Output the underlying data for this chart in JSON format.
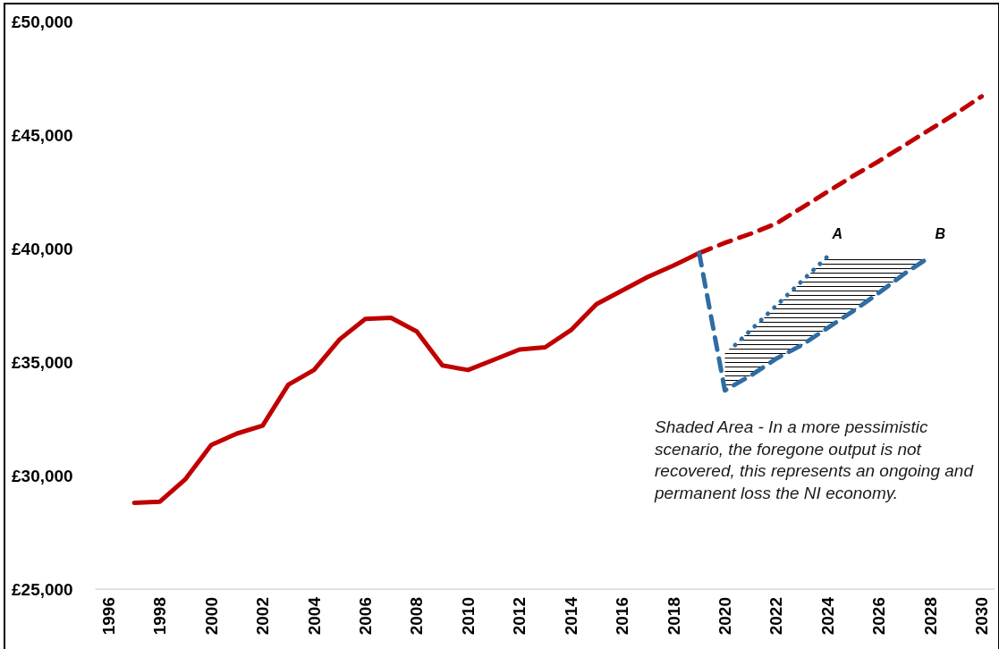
{
  "chart_data": {
    "type": "line",
    "xlim": [
      1995.5,
      2030.5
    ],
    "xticks": [
      1996,
      1998,
      2000,
      2002,
      2004,
      2006,
      2008,
      2010,
      2012,
      2014,
      2016,
      2018,
      2020,
      2022,
      2024,
      2026,
      2028,
      2030
    ],
    "ylim": [
      25000,
      50000
    ],
    "yticks": [
      {
        "value": 25000,
        "label": "£25,000"
      },
      {
        "value": 30000,
        "label": "£30,000"
      },
      {
        "value": 35000,
        "label": "£35,000"
      },
      {
        "value": 40000,
        "label": "£40,000"
      },
      {
        "value": 45000,
        "label": "£45,000"
      },
      {
        "value": 50000,
        "label": "£50,000"
      }
    ],
    "marker": "none",
    "series": [
      {
        "color": "#c00000",
        "line_style": "solid",
        "x": [
          1997,
          1998,
          1999,
          2000,
          2001,
          2002,
          2003,
          2004,
          2005,
          2006,
          2007,
          2008,
          2009,
          2010,
          2011,
          2012,
          2013,
          2014,
          2015,
          2016,
          2017,
          2018,
          2019
        ],
        "values": [
          28800,
          28850,
          29850,
          31350,
          31850,
          32200,
          34000,
          34650,
          36000,
          36900,
          36950,
          36350,
          34850,
          34650,
          35100,
          35550,
          35650,
          36400,
          37550,
          38150,
          38750,
          39250,
          39800
        ]
      },
      {
        "color": "#c00000",
        "line_style": "dashed",
        "x": [
          2019,
          2020,
          2021,
          2022,
          2023,
          2024,
          2025,
          2026,
          2027,
          2028,
          2029,
          2030
        ],
        "values": [
          39800,
          40250,
          40650,
          41100,
          41800,
          42500,
          43200,
          43850,
          44550,
          45250,
          45950,
          46700
        ]
      },
      {
        "name": "B",
        "color": "#2e6da4",
        "line_style": "dashed",
        "x": [
          2019,
          2020,
          2021,
          2022,
          2023,
          2024,
          2025,
          2026,
          2027,
          2028
        ],
        "values": [
          39800,
          33750,
          34400,
          35150,
          35750,
          36500,
          37250,
          38050,
          38900,
          39650
        ],
        "lower": [
          null,
          33750,
          34400,
          35150,
          35750,
          36500,
          37250,
          38050,
          38900,
          39650
        ],
        "upper": [
          null,
          35400,
          36400,
          37450,
          38550,
          39650,
          39650,
          39650,
          39650,
          39650
        ]
      },
      {
        "name": "A",
        "color": "#2e6da4",
        "line_style": "dotted",
        "x": [
          2020.4,
          2024
        ],
        "values": [
          35750,
          39650
        ]
      }
    ],
    "annotations": [
      "Shaded Area - In a more pessimistic scenario, the foregone output is not recovered, this represents an ongoing and permanent loss the NI economy."
    ]
  }
}
